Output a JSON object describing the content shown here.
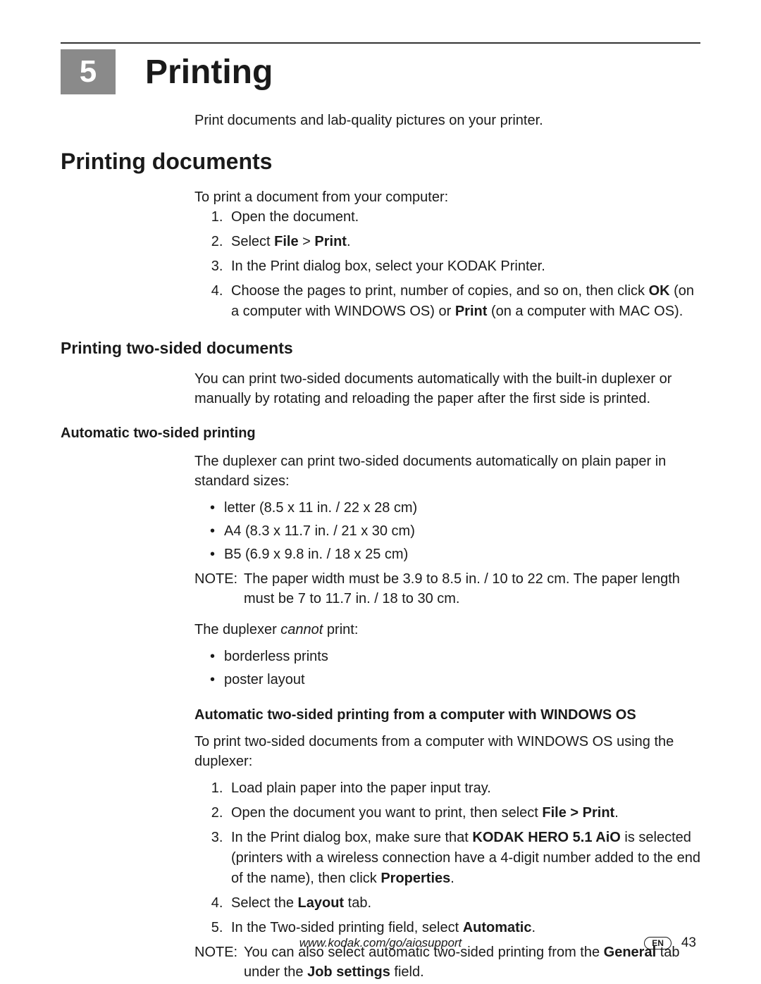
{
  "chapter": {
    "number": "5",
    "title": "Printing"
  },
  "intro": "Print documents and lab-quality pictures on your printer.",
  "section1": {
    "title": "Printing documents",
    "lead": "To print a document from your computer:",
    "steps": {
      "s1": "Open the document.",
      "s2a": "Select ",
      "s2b": "File",
      "s2c": " > ",
      "s2d": "Print",
      "s2e": ".",
      "s3": "In the Print dialog box, select your KODAK Printer.",
      "s4a": "Choose the pages to print, number of copies, and so on, then click ",
      "s4b": "OK",
      "s4c": " (on a computer with WINDOWS OS) or ",
      "s4d": "Print",
      "s4e": " (on a computer with MAC OS)."
    }
  },
  "sub1": {
    "title": "Printing two-sided documents",
    "text": "You can print two-sided documents automatically with the built-in duplexer or manually by rotating and reloading the paper after the first side is printed."
  },
  "sub2": {
    "title": "Automatic two-sided printing",
    "text": "The duplexer can print two-sided documents automatically on plain paper in standard sizes:",
    "sizes": {
      "a": "letter (8.5 x 11 in. / 22 x 28 cm)",
      "b": "A4 (8.3 x 11.7 in. / 21 x 30 cm)",
      "c": "B5 (6.9 x 9.8 in. / 18 x 25 cm)"
    },
    "note_label": "NOTE:",
    "note_text": "The paper width must be 3.9 to 8.5 in. / 10 to 22 cm. The paper length must be 7 to 11.7 in. / 18 to 30 cm.",
    "cannot_a": "The duplexer ",
    "cannot_b": "cannot",
    "cannot_c": " print:",
    "cannot_list": {
      "a": "borderless prints",
      "b": "poster layout"
    }
  },
  "sub3": {
    "title": "Automatic two-sided printing from a computer with WINDOWS OS",
    "lead": "To print two-sided documents from a computer with WINDOWS OS using the duplexer:",
    "steps": {
      "s1": "Load plain paper into the paper input tray.",
      "s2a": "Open the document you want to print, then select ",
      "s2b": "File > Print",
      "s2c": ".",
      "s3a": "In the Print dialog box, make sure that ",
      "s3b": "KODAK HERO 5.1 AiO",
      "s3c": " is selected (printers with a wireless connection have a 4-digit number added to the end of the name), then click ",
      "s3d": "Properties",
      "s3e": ".",
      "s4a": "Select the ",
      "s4b": "Layout",
      "s4c": " tab.",
      "s5a": "In the Two-sided printing field, select ",
      "s5b": "Automatic",
      "s5c": "."
    },
    "note_label": "NOTE:",
    "note_a": "You can also select automatic two-sided printing from the ",
    "note_b": "General",
    "note_c": " tab under the ",
    "note_d": "Job settings",
    "note_e": " field."
  },
  "footer": {
    "url": "www.kodak.com/go/aiosupport",
    "lang": "EN",
    "page": "43"
  }
}
